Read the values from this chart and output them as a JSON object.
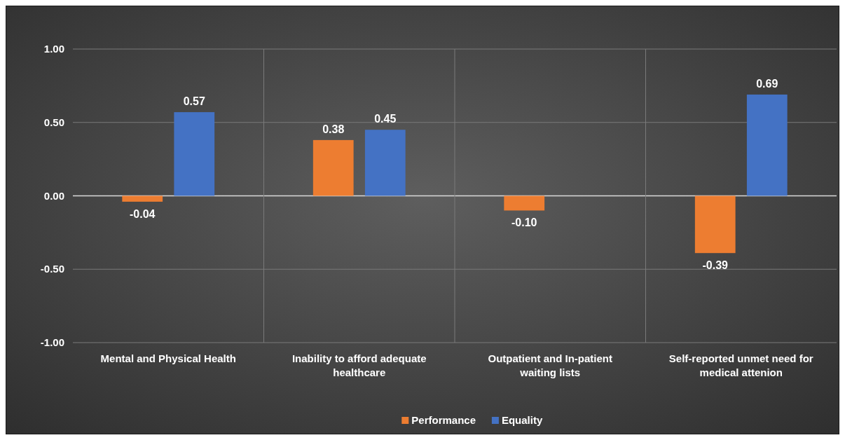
{
  "chart_data": {
    "type": "bar",
    "categories": [
      "Mental and Physical Health",
      "Inability to afford adequate healthcare",
      "Outpatient and In-patient waiting lists",
      "Self-reported unmet need for medical attenion"
    ],
    "series": [
      {
        "name": "Performance",
        "color": "#ed7d31",
        "values": [
          -0.04,
          0.38,
          -0.1,
          -0.39
        ],
        "value_labels": [
          "-0.04",
          "0.38",
          "-0.10",
          "-0.39"
        ]
      },
      {
        "name": "Equality",
        "color": "#4472c4",
        "values": [
          0.57,
          0.45,
          null,
          0.69
        ],
        "value_labels": [
          "0.57",
          "0.45",
          null,
          "0.69"
        ]
      }
    ],
    "ylim": [
      -1,
      1
    ],
    "yticks": [
      {
        "value": -1,
        "label": "-1.00"
      },
      {
        "value": -0.5,
        "label": "-0.50"
      },
      {
        "value": 0,
        "label": "0.00"
      },
      {
        "value": 0.5,
        "label": "0.50"
      },
      {
        "value": 1,
        "label": "1.00"
      }
    ],
    "grid": true,
    "legend": "bottom"
  }
}
